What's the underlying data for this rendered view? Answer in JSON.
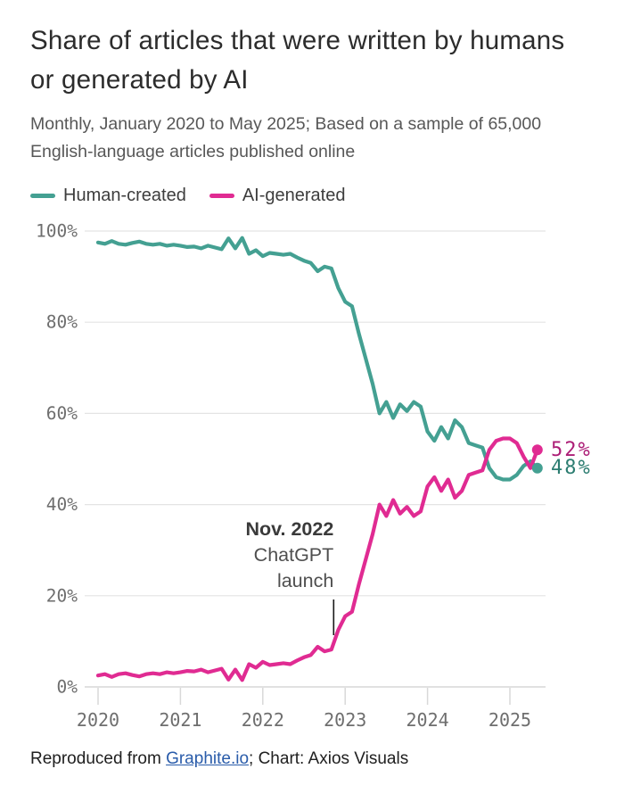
{
  "title": "Share of articles that were written by humans or generated by AI",
  "subtitle": "Monthly, January 2020 to May 2025; Based on a sample of 65,000 English-language articles published online",
  "legend": [
    {
      "label": "Human-created",
      "color": "#44a092"
    },
    {
      "label": "AI-generated",
      "color": "#e02b92"
    }
  ],
  "footer": {
    "prefix": "Reproduced from ",
    "link_text": "Graphite.io",
    "suffix": "; Chart: Axios Visuals"
  },
  "chart_data": {
    "type": "line",
    "title": "Share of articles that were written by humans or generated by AI",
    "x_unit": "month",
    "x_start": "2020-01",
    "x_end": "2025-05",
    "months_count": 65,
    "ylim": [
      0,
      100
    ],
    "grid": "horizontal",
    "legend_position": "top-left",
    "y_ticks": [
      {
        "value": 100,
        "label": "100%"
      },
      {
        "value": 80,
        "label": "80%"
      },
      {
        "value": 60,
        "label": "60%"
      },
      {
        "value": 40,
        "label": "40%"
      },
      {
        "value": 20,
        "label": "20%"
      },
      {
        "value": 0,
        "label": "0%"
      }
    ],
    "x_ticks": [
      {
        "label": "2020",
        "month_index": 0
      },
      {
        "label": "2021",
        "month_index": 12
      },
      {
        "label": "2022",
        "month_index": 24
      },
      {
        "label": "2023",
        "month_index": 36
      },
      {
        "label": "2024",
        "month_index": 48
      },
      {
        "label": "2025",
        "month_index": 60
      }
    ],
    "series": [
      {
        "name": "Human-created",
        "color": "#44a092",
        "label_color": "#2c7d71",
        "end_label": "48%",
        "values": [
          97.5,
          97.2,
          97.8,
          97.2,
          97.0,
          97.4,
          97.7,
          97.2,
          97.0,
          97.2,
          96.8,
          97.0,
          96.8,
          96.5,
          96.6,
          96.2,
          96.8,
          96.4,
          96.0,
          98.4,
          96.2,
          98.5,
          95.0,
          95.8,
          94.5,
          95.2,
          95.0,
          94.8,
          95.0,
          94.2,
          93.5,
          93.0,
          91.2,
          92.2,
          91.8,
          87.5,
          84.5,
          83.5,
          77.5,
          72.0,
          66.5,
          60.0,
          62.5,
          59.0,
          62.0,
          60.5,
          62.5,
          61.5,
          56.0,
          54.0,
          57.0,
          54.5,
          58.5,
          57.0,
          53.5,
          53.0,
          52.5,
          48.0,
          46.0,
          45.5,
          45.5,
          46.5,
          48.5,
          49.5,
          48.0
        ]
      },
      {
        "name": "AI-generated",
        "color": "#e02b92",
        "label_color": "#ac1d76",
        "end_label": "52%",
        "values": [
          2.5,
          2.8,
          2.2,
          2.8,
          3.0,
          2.6,
          2.3,
          2.8,
          3.0,
          2.8,
          3.2,
          3.0,
          3.2,
          3.5,
          3.4,
          3.8,
          3.2,
          3.6,
          4.0,
          1.6,
          3.8,
          1.5,
          5.0,
          4.2,
          5.5,
          4.8,
          5.0,
          5.2,
          5.0,
          5.8,
          6.5,
          7.0,
          8.8,
          7.8,
          8.2,
          12.5,
          15.5,
          16.5,
          22.5,
          28.0,
          33.5,
          40.0,
          37.5,
          41.0,
          38.0,
          39.5,
          37.5,
          38.5,
          44.0,
          46.0,
          43.0,
          45.5,
          41.5,
          43.0,
          46.5,
          47.0,
          47.5,
          52.0,
          54.0,
          54.5,
          54.5,
          53.5,
          50.5,
          48.0,
          52.0
        ]
      }
    ],
    "annotation": {
      "lines": [
        "Nov. 2022",
        "ChatGPT",
        "launch"
      ],
      "month_index": 34,
      "month_label": "Nov. 2022"
    }
  }
}
